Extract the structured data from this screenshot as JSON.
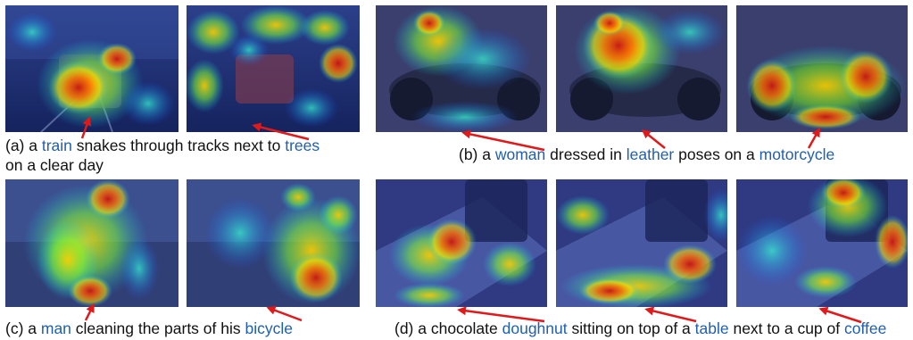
{
  "colors": {
    "highlight": "#1f5fb0",
    "arrow": "#e0191b",
    "text": "#111111"
  },
  "captions": {
    "a": {
      "line1": {
        "p1": "(a) a ",
        "w1": "train",
        "p2": " snakes through tracks next to ",
        "w2": "trees"
      },
      "line2": "on a clear day"
    },
    "b": {
      "p1": "(b) a ",
      "w1": "woman",
      "p2": " dressed in ",
      "w2": "leather",
      "p3": " poses on a ",
      "w3": "motorcycle"
    },
    "c": {
      "p1": "(c) a ",
      "w1": "man",
      "p2": " cleaning the parts of his ",
      "w2": "bicycle"
    },
    "d": {
      "p1": "(d) a chocolate ",
      "w1": "doughnut",
      "p2": " sitting on top of a ",
      "w2": "table",
      "p3": " next to a cup of ",
      "w3": "coffee"
    }
  },
  "panels": [
    {
      "group": "a",
      "word": "train",
      "scene": "train"
    },
    {
      "group": "a",
      "word": "trees",
      "scene": "train"
    },
    {
      "group": "b",
      "word": "woman",
      "scene": "motorcycle"
    },
    {
      "group": "b",
      "word": "leather",
      "scene": "motorcycle"
    },
    {
      "group": "b",
      "word": "motorcycle",
      "scene": "motorcycle"
    },
    {
      "group": "c",
      "word": "man",
      "scene": "bicycle"
    },
    {
      "group": "c",
      "word": "bicycle",
      "scene": "bicycle"
    },
    {
      "group": "d",
      "word": "doughnut",
      "scene": "coffee"
    },
    {
      "group": "d",
      "word": "table",
      "scene": "coffee"
    },
    {
      "group": "d",
      "word": "coffee",
      "scene": "coffee"
    }
  ]
}
